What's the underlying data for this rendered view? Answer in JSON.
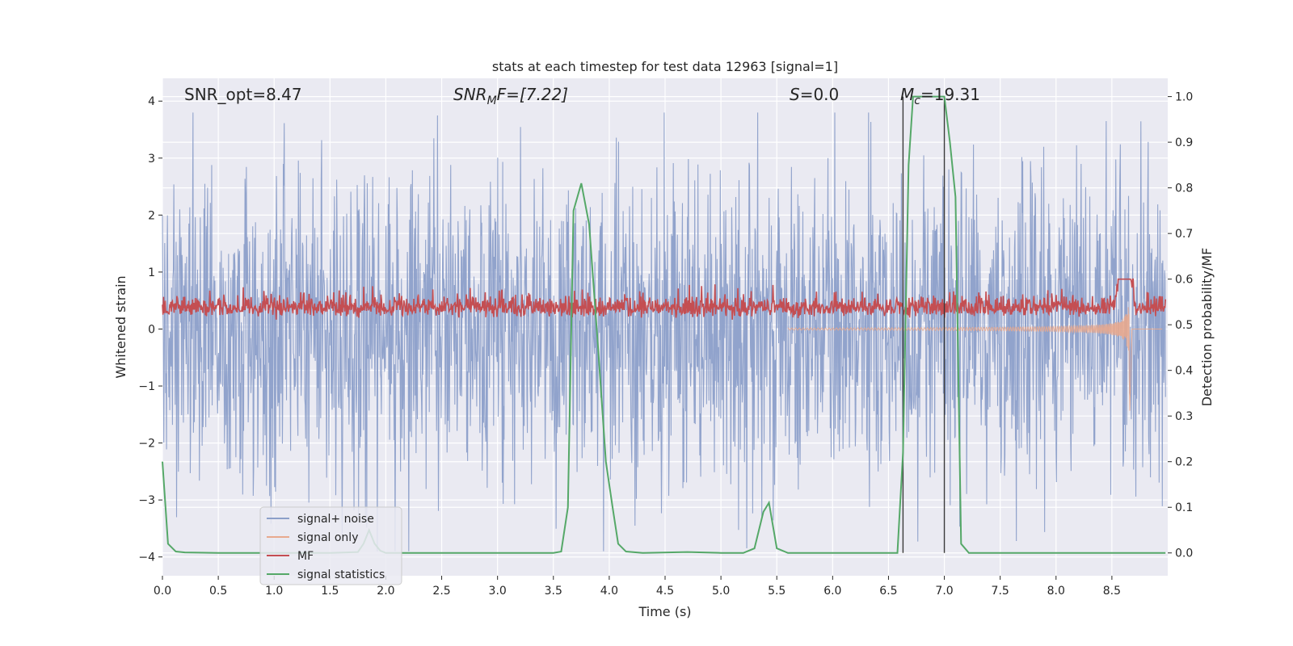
{
  "chart_data": {
    "type": "line",
    "title": "stats at each timestep for test data 12963 [signal=1]",
    "xlabel": "Time (s)",
    "ylabel_left": "Whitened strain",
    "ylabel_right": "Detection probability/MF",
    "xlim": [
      0.0,
      9.0
    ],
    "ylim_left": [
      -4.33,
      4.4
    ],
    "ylim_right": [
      -0.05,
      1.04
    ],
    "x_ticks": [
      "0.0",
      "0.5",
      "1.0",
      "1.5",
      "2.0",
      "2.5",
      "3.0",
      "3.5",
      "4.0",
      "4.5",
      "5.0",
      "5.5",
      "6.0",
      "6.5",
      "7.0",
      "7.5",
      "8.0",
      "8.5"
    ],
    "y_ticks_left": [
      "4",
      "3",
      "2",
      "1",
      "0",
      "−1",
      "−2",
      "−3",
      "−4"
    ],
    "y_ticks_right": [
      "1.0",
      "0.9",
      "0.8",
      "0.7",
      "0.6",
      "0.5",
      "0.4",
      "0.3",
      "0.2",
      "0.1",
      "0.0"
    ],
    "annotations": {
      "snr_opt": "SNR_opt=8.47",
      "snr_mf_base": "SNR",
      "snr_mf_sub": "M",
      "snr_mf_rest": "F=[7.22]",
      "s_label": "S",
      "s_value": "=0.0",
      "mc_base": "M",
      "mc_sub": "c",
      "mc_value": "=19.31"
    },
    "vertical_lines_time": [
      6.63,
      7.0
    ],
    "series": [
      {
        "name": "signal+ noise",
        "color": "#8c9fc9",
        "axis": "left",
        "description": "whitened noisy strain, roughly within -2.5..2.5 with spikes to about +/-3.8"
      },
      {
        "name": "signal only",
        "color": "#e8a98e",
        "axis": "left",
        "description": "chirp growing toward merger near t=8.65 s with peak amplitude about 1.6"
      },
      {
        "name": "MF",
        "color": "#c44e52",
        "axis": "right",
        "description": "matched-filter output fluctuating around 0.5-0.57"
      },
      {
        "name": "signal statistics",
        "color": "#55a868",
        "axis": "right",
        "x": [
          0.0,
          0.05,
          0.12,
          0.2,
          0.5,
          1.0,
          1.5,
          1.75,
          1.8,
          1.85,
          1.9,
          1.95,
          2.0,
          2.5,
          3.0,
          3.5,
          3.57,
          3.63,
          3.68,
          3.75,
          3.82,
          3.9,
          3.97,
          4.03,
          4.08,
          4.15,
          4.3,
          4.7,
          5.0,
          5.2,
          5.3,
          5.38,
          5.43,
          5.5,
          5.6,
          6.0,
          6.5,
          6.58,
          6.63,
          6.68,
          6.72,
          6.8,
          6.9,
          6.95,
          7.0,
          7.05,
          7.1,
          7.15,
          7.22,
          7.5,
          8.0,
          8.5,
          8.98
        ],
        "values": [
          0.2,
          0.02,
          0.003,
          0.001,
          0.0,
          0.0,
          0.0,
          0.002,
          0.02,
          0.05,
          0.02,
          0.005,
          0.0,
          0.0,
          0.0,
          0.0,
          0.003,
          0.1,
          0.75,
          0.81,
          0.72,
          0.45,
          0.2,
          0.1,
          0.02,
          0.003,
          0.0,
          0.002,
          0.0,
          0.0,
          0.01,
          0.09,
          0.11,
          0.01,
          0.0,
          0.0,
          0.0,
          0.0,
          0.22,
          0.85,
          1.0,
          1.0,
          1.0,
          1.0,
          1.0,
          0.9,
          0.78,
          0.02,
          0.0,
          0.0,
          0.0,
          0.0,
          0.0
        ]
      }
    ],
    "legend": {
      "placement": "lower-left",
      "entries": [
        {
          "label": "signal+ noise",
          "color": "#8c9fc9"
        },
        {
          "label": "signal only",
          "color": "#e8a98e"
        },
        {
          "label": "MF",
          "color": "#c44e52"
        },
        {
          "label": "signal statistics",
          "color": "#55a868"
        }
      ]
    },
    "colors": {
      "background": "#eaeaf2",
      "grid": "#ffffff",
      "vline": "#3a3a3a"
    }
  }
}
